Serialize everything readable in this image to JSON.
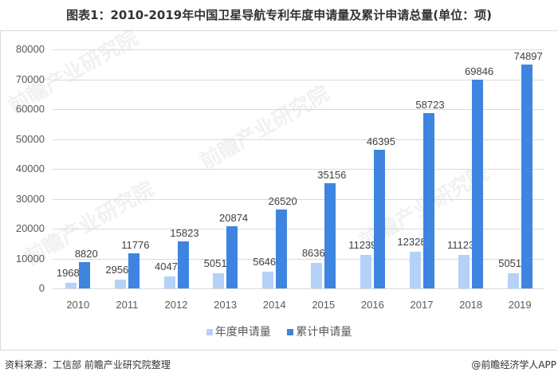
{
  "title": "图表1：2010-2019年中国卫星导航专利年度申请量及累计申请总量(单位：项)",
  "chart_data": {
    "type": "bar",
    "title": "图表1：2010-2019年中国卫星导航专利年度申请量及累计申请总量(单位：项)",
    "xlabel": "",
    "ylabel": "",
    "ylim": [
      0,
      80000
    ],
    "yticks": [
      "0",
      "10000",
      "20000",
      "30000",
      "40000",
      "50000",
      "60000",
      "70000",
      "80000"
    ],
    "grid": true,
    "legend_position": "bottom",
    "categories": [
      "2010",
      "2011",
      "2012",
      "2013",
      "2014",
      "2015",
      "2016",
      "2017",
      "2018",
      "2019"
    ],
    "series": [
      {
        "name": "年度申请量",
        "color": "#b4d2f7",
        "values": [
          1968,
          2956,
          4047,
          5051,
          5646,
          8636,
          11239,
          12328,
          11123,
          5051
        ]
      },
      {
        "name": "累计申请量",
        "color": "#3d85e0",
        "values": [
          8820,
          11776,
          15823,
          20874,
          26520,
          35156,
          46395,
          58723,
          69846,
          74897
        ]
      }
    ]
  },
  "legend": {
    "annual": "年度申请量",
    "cumulative": "累计申请量"
  },
  "yticks": {
    "t0": "0",
    "t1": "10000",
    "t2": "20000",
    "t3": "30000",
    "t4": "40000",
    "t5": "50000",
    "t6": "60000",
    "t7": "70000",
    "t8": "80000"
  },
  "footer": {
    "source": "资料来源：工信部 前瞻产业研究院整理",
    "credit": "@前瞻经济学人APP"
  },
  "watermark": "前瞻产业研究院"
}
